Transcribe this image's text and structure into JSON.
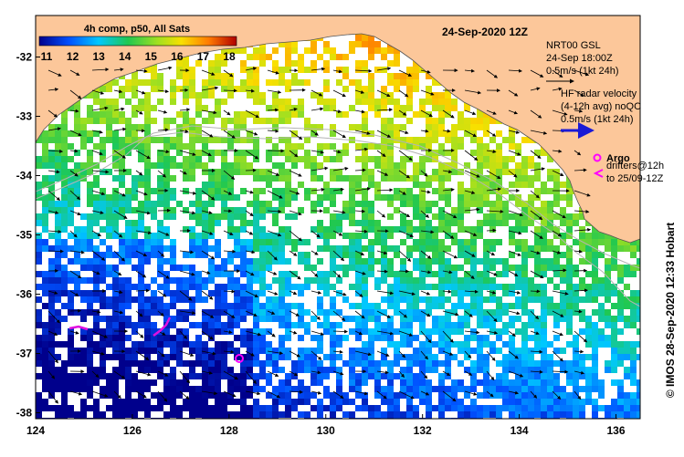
{
  "map": {
    "title": "24-Sep-2020 12Z",
    "colorbar": {
      "label": "4h comp, p50, All Sats",
      "ticks": [
        "11",
        "12",
        "13",
        "14",
        "15",
        "16",
        "17",
        "18"
      ],
      "range": [
        11,
        18
      ]
    },
    "legend": {
      "gsl_title": "NRT00 GSL",
      "gsl_time": "24-Sep 18:00Z",
      "gsl_scale": "0.5m/s (1kt 24h)",
      "hf_title": "HF radar velocity",
      "hf_detail": "(4-12h avg) noQC",
      "hf_scale": "0.5m/s (1kt 24h)",
      "argo_label": "Argo",
      "drifters_line1": "drifters@12h",
      "drifters_line2": "to 25/09-12Z"
    },
    "credit": "© IMOS 28-Sep-2020 12:33 Hobart",
    "x_ticks": [
      "124",
      "126",
      "128",
      "130",
      "132",
      "134",
      "136"
    ],
    "y_ticks": [
      "-32",
      "-33",
      "-34",
      "-35",
      "-36",
      "-37",
      "-38"
    ],
    "x_range": [
      124,
      136.5
    ],
    "y_range": [
      -38.1,
      -31.3
    ],
    "colors": {
      "land": "#fcc79a",
      "ocean": "#ffffff",
      "isobath": "#b4b4b4",
      "vector": "#000000",
      "hf_radar": "#1a1ad6",
      "argo": "#ff00ff",
      "drifter": "#e010e0"
    }
  }
}
